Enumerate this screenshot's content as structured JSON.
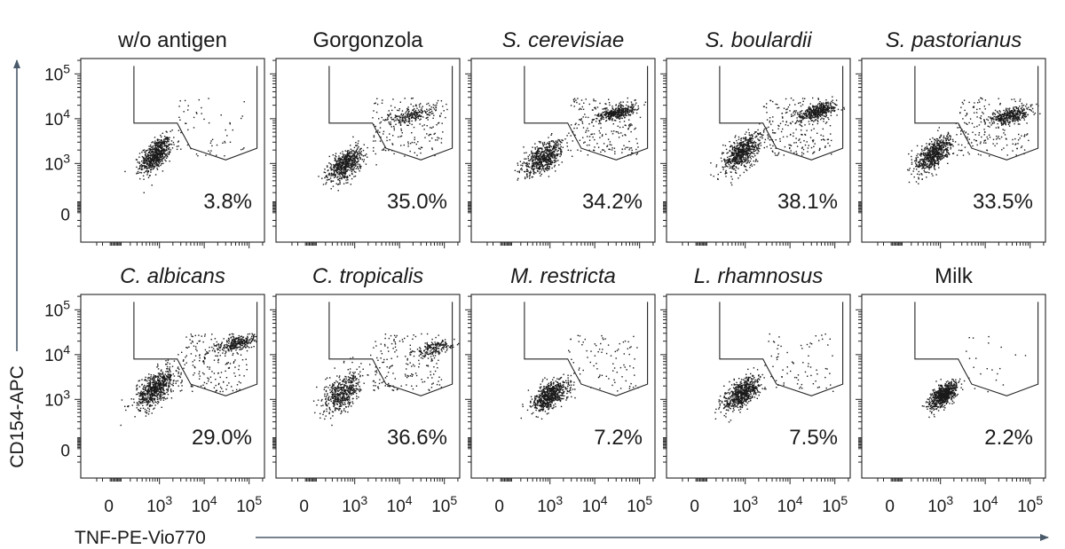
{
  "figure": {
    "y_axis_label": "CD154-APC",
    "x_axis_label": "TNF-PE-Vio770",
    "arrow_color": "#4a5a6a"
  },
  "chart_data": {
    "type": "scatter",
    "grid": false,
    "x_scale": "biexponential",
    "y_scale": "biexponential",
    "x_ticks": [
      {
        "value": 0,
        "label": "0"
      },
      {
        "value": 1000,
        "label": "10",
        "exp": "3"
      },
      {
        "value": 10000,
        "label": "10",
        "exp": "4"
      },
      {
        "value": 100000,
        "label": "10",
        "exp": "5"
      }
    ],
    "y_ticks": [
      {
        "value": 0,
        "label": "0"
      },
      {
        "value": 1000,
        "label": "10",
        "exp": "3"
      },
      {
        "value": 10000,
        "label": "10",
        "exp": "4"
      },
      {
        "value": 100000,
        "label": "10",
        "exp": "5"
      }
    ],
    "panels": [
      {
        "title": "w/o antigen",
        "italic": false,
        "gate_percent": "3.8%",
        "clusters": [
          {
            "x": 800,
            "y": 1600,
            "n": 650,
            "sx": 0.17,
            "sy": 0.2
          }
        ],
        "scatter_points": 55
      },
      {
        "title": "Gorgonzola",
        "italic": false,
        "gate_percent": "35.0%",
        "clusters": [
          {
            "x": 600,
            "y": 1000,
            "n": 600,
            "sx": 0.2,
            "sy": 0.2
          },
          {
            "x": 18000,
            "y": 12000,
            "n": 220,
            "sx": 0.3,
            "sy": 0.1
          }
        ],
        "scatter_points": 160
      },
      {
        "title": "S. cerevisiae",
        "italic": true,
        "gate_percent": "34.2%",
        "clusters": [
          {
            "x": 700,
            "y": 1400,
            "n": 600,
            "sx": 0.22,
            "sy": 0.2
          },
          {
            "x": 30000,
            "y": 14000,
            "n": 350,
            "sx": 0.22,
            "sy": 0.09
          }
        ],
        "scatter_points": 200
      },
      {
        "title": "S. boulardii",
        "italic": true,
        "gate_percent": "38.1%",
        "clusters": [
          {
            "x": 800,
            "y": 1800,
            "n": 650,
            "sx": 0.2,
            "sy": 0.22
          },
          {
            "x": 40000,
            "y": 15000,
            "n": 420,
            "sx": 0.22,
            "sy": 0.1
          }
        ],
        "scatter_points": 190
      },
      {
        "title": "S. pastorianus",
        "italic": true,
        "gate_percent": "33.5%",
        "clusters": [
          {
            "x": 700,
            "y": 1700,
            "n": 650,
            "sx": 0.2,
            "sy": 0.2
          },
          {
            "x": 35000,
            "y": 12000,
            "n": 360,
            "sx": 0.24,
            "sy": 0.1
          }
        ],
        "scatter_points": 180
      },
      {
        "title": "C. albicans",
        "italic": true,
        "gate_percent": "29.0%",
        "clusters": [
          {
            "x": 800,
            "y": 1800,
            "n": 680,
            "sx": 0.22,
            "sy": 0.22
          },
          {
            "x": 50000,
            "y": 18000,
            "n": 260,
            "sx": 0.22,
            "sy": 0.1
          }
        ],
        "scatter_points": 200
      },
      {
        "title": "C. tropicalis",
        "italic": true,
        "gate_percent": "36.6%",
        "clusters": [
          {
            "x": 500,
            "y": 1500,
            "n": 500,
            "sx": 0.22,
            "sy": 0.25
          },
          {
            "x": 55000,
            "y": 14000,
            "n": 170,
            "sx": 0.2,
            "sy": 0.1
          }
        ],
        "scatter_points": 170
      },
      {
        "title": "M. restricta",
        "italic": true,
        "gate_percent": "7.2%",
        "clusters": [
          {
            "x": 1000,
            "y": 1300,
            "n": 650,
            "sx": 0.2,
            "sy": 0.17
          }
        ],
        "scatter_points": 90
      },
      {
        "title": "L. rhamnosus",
        "italic": true,
        "gate_percent": "7.5%",
        "clusters": [
          {
            "x": 800,
            "y": 1400,
            "n": 650,
            "sx": 0.2,
            "sy": 0.19
          }
        ],
        "scatter_points": 80
      },
      {
        "title": "Milk",
        "italic": false,
        "gate_percent": "2.2%",
        "clusters": [
          {
            "x": 1100,
            "y": 1300,
            "n": 650,
            "sx": 0.15,
            "sy": 0.15
          }
        ],
        "scatter_points": 20
      }
    ]
  }
}
